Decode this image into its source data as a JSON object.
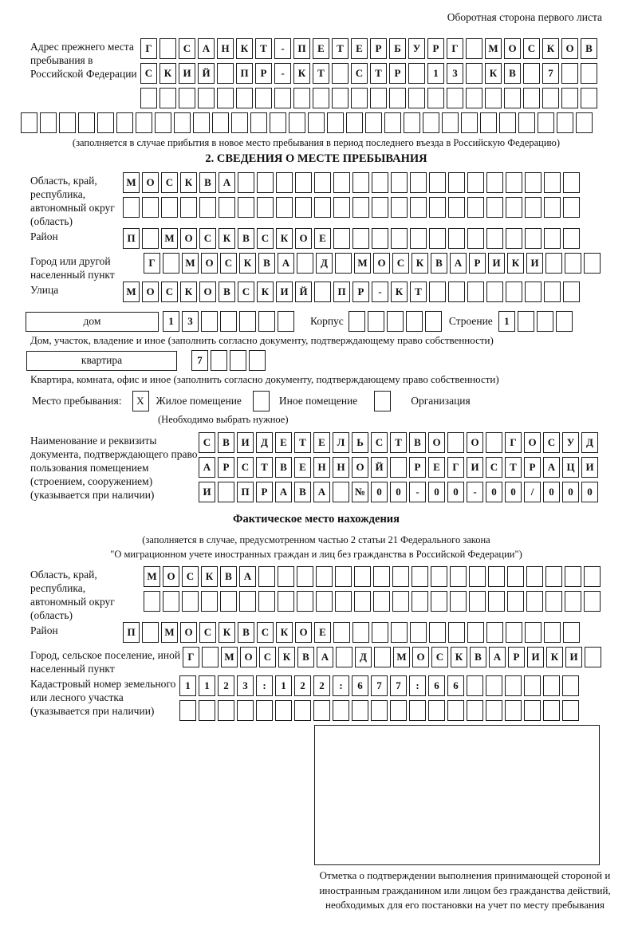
{
  "page_title": "Оборотная сторона первого листа",
  "prev_address": {
    "label": "Адрес прежнего места пребывания в Российской Федерации",
    "rows": [
      {
        "chars": "Г САНКТ-ПЕТЕРБУРГ МОСКОВ",
        "len": 24
      },
      {
        "chars": "СКИЙ ПР-КТ СТР 13 КВ 7",
        "len": 24
      },
      {
        "chars": "",
        "len": 24
      },
      {
        "chars": "",
        "len": 30
      }
    ],
    "caption": "(заполняется в случае прибытия в новое место пребывания в период последнего въезда в Российскую Федерацию)"
  },
  "section2": {
    "title": "2. СВЕДЕНИЯ О МЕСТЕ ПРЕБЫВАНИЯ",
    "region": {
      "label": "Область, край, республика, автономный округ (область)",
      "rows": [
        {
          "chars": "МОСКВА",
          "len": 24
        },
        {
          "chars": "",
          "len": 24
        }
      ]
    },
    "district": {
      "label": "Район",
      "row": {
        "chars": "П МОСКВСКОЕ",
        "len": 24
      }
    },
    "city": {
      "label": "Город или другой населенный пункт",
      "row": {
        "chars": "Г МОСКВА Д МОСКВАРИКИ",
        "len": 24
      }
    },
    "street": {
      "label": "Улица",
      "row": {
        "chars": "МОСКОВСКИЙ ПР-КТ",
        "len": 24
      }
    },
    "house": {
      "box_label": "дом",
      "row": {
        "chars": "13",
        "len": 7
      },
      "korpus_label": "Корпус",
      "korpus_row": {
        "chars": "",
        "len": 5
      },
      "stroenie_label": "Строение",
      "stroenie_row": {
        "chars": "1",
        "len": 4
      },
      "caption": "Дом, участок, владение и иное (заполнить согласно документу, подтверждающему право собственности)"
    },
    "apartment": {
      "box_label": "квартира",
      "row": {
        "chars": "7",
        "len": 4
      },
      "caption": "Квартира, комната, офис и иное (заполнить согласно документу, подтверждающему право собственности)"
    },
    "stay_type": {
      "label": "Место пребывания:",
      "options": [
        {
          "label": "Жилое помещение",
          "mark": "X"
        },
        {
          "label": "Иное помещение",
          "mark": ""
        },
        {
          "label": "Организация",
          "mark": ""
        }
      ],
      "hint": "(Необходимо выбрать нужное)"
    },
    "document": {
      "label": "Наименование и реквизиты документа, подтверждающего право пользования помещением (строением, сооружением) (указывается при наличии)",
      "rows": [
        {
          "chars": "СВИДЕТЕЛЬСТВО О ГОСУД",
          "len": 21
        },
        {
          "chars": "АРСТВЕННОЙ РЕГИСТРАЦИ",
          "len": 21
        },
        {
          "chars": "И ПРАВА №00-00-00/000",
          "len": 21
        }
      ]
    }
  },
  "actual_location": {
    "title": "Фактическое место нахождения",
    "note_line1": "(заполняется в случае, предусмотренном частью 2 статьи 21 Федерального закона",
    "note_line2": "\"О миграционном учете иностранных граждан и лиц без гражданства в Российской Федерации\")",
    "region": {
      "label": "Область, край, республика, автономный округ (область)",
      "rows": [
        {
          "chars": "МОСКВА",
          "len": 24
        },
        {
          "chars": "",
          "len": 24
        }
      ]
    },
    "district": {
      "label": "Район",
      "row": {
        "chars": "П МОСКВСКОЕ",
        "len": 24
      }
    },
    "city": {
      "label": "Город, сельское поселение, иной населенный пункт",
      "row": {
        "chars": "Г МОСКВА Д МОСКВАРИКИ",
        "len": 22
      }
    },
    "cadastral": {
      "label": "Кадастровый номер земельного или лесного участка (указывается при наличии)",
      "rows": [
        {
          "chars": "1123:122:677:66",
          "len": 21
        },
        {
          "chars": "",
          "len": 21
        }
      ]
    },
    "stamp_caption": "Отметка о подтверждении выполнения принимающей стороной и иностранным гражданином или лицом без гражданства действий, необходимых для его постановки на учет по месту пребывания"
  }
}
